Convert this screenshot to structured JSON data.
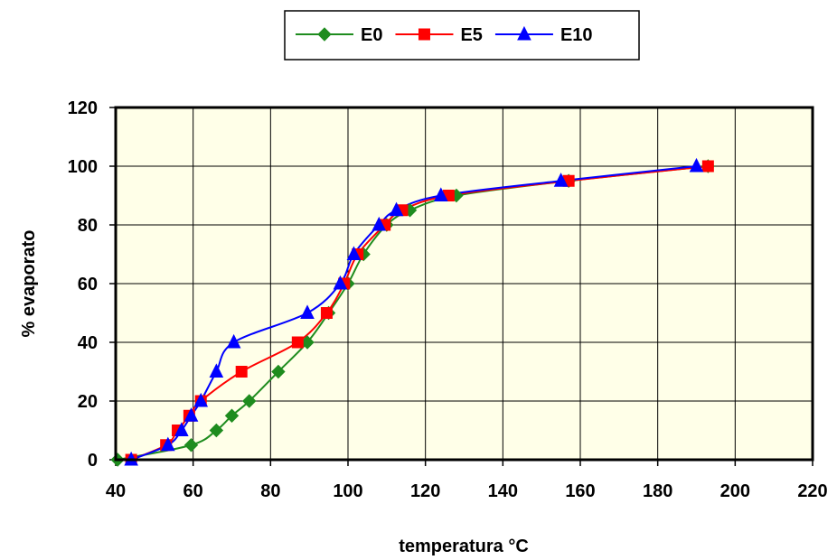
{
  "chart_data": {
    "type": "line",
    "xlabel": "temperatura °C",
    "ylabel": "% evaporato",
    "xlim": [
      40,
      220
    ],
    "ylim": [
      0,
      120
    ],
    "xticks": [
      40,
      60,
      80,
      100,
      120,
      140,
      160,
      180,
      200,
      220
    ],
    "yticks": [
      0,
      20,
      40,
      60,
      80,
      100,
      120
    ],
    "grid": true,
    "legend_position": "top",
    "plot_background": "#FFFFE8",
    "series": [
      {
        "name": "E0",
        "color": "#1E8C1E",
        "marker": "diamond",
        "points": [
          [
            40.5,
            0
          ],
          [
            59.5,
            5
          ],
          [
            66,
            10
          ],
          [
            70,
            15
          ],
          [
            74.5,
            20
          ],
          [
            82,
            30
          ],
          [
            89.5,
            40
          ],
          [
            95,
            50
          ],
          [
            100,
            60
          ],
          [
            104,
            70
          ],
          [
            110,
            80
          ],
          [
            116,
            85
          ],
          [
            128,
            90
          ],
          [
            157,
            95
          ],
          [
            193,
            100
          ]
        ]
      },
      {
        "name": "E5",
        "color": "#FF0000",
        "marker": "square",
        "points": [
          [
            44,
            0
          ],
          [
            53,
            5
          ],
          [
            56,
            10
          ],
          [
            59,
            15
          ],
          [
            62,
            20
          ],
          [
            72.5,
            30
          ],
          [
            87,
            40
          ],
          [
            94.5,
            50
          ],
          [
            99,
            60
          ],
          [
            102.5,
            70
          ],
          [
            109.5,
            80
          ],
          [
            114,
            85
          ],
          [
            126,
            90
          ],
          [
            157,
            95
          ],
          [
            193,
            100
          ]
        ]
      },
      {
        "name": "E10",
        "color": "#0000FF",
        "marker": "triangle",
        "points": [
          [
            44,
            0
          ],
          [
            53.5,
            5
          ],
          [
            57,
            10
          ],
          [
            59.5,
            15
          ],
          [
            62,
            20
          ],
          [
            66,
            30
          ],
          [
            70.5,
            40
          ],
          [
            89.5,
            50
          ],
          [
            98,
            60
          ],
          [
            101.5,
            70
          ],
          [
            108,
            80
          ],
          [
            112.5,
            85
          ],
          [
            124,
            90
          ],
          [
            155,
            95
          ],
          [
            190,
            100
          ]
        ]
      }
    ]
  }
}
